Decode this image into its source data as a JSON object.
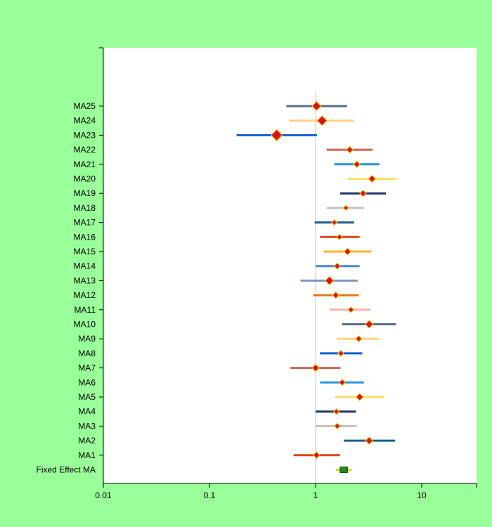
{
  "chart_data": {
    "type": "forest",
    "x_scale": "log",
    "xlim": [
      0.01,
      33
    ],
    "x_ticks": [
      "0.01",
      "0.1",
      "1",
      "10"
    ],
    "x_tick_values": [
      0.01,
      0.1,
      1,
      10
    ],
    "reference_line": 1,
    "grid": false,
    "colors": {
      "background": "#99ff99",
      "plot_area": "#ffffff",
      "reference_line": "#f4b6a6",
      "marker": "#dd1111",
      "marker_edge": "#ffcc00"
    },
    "studies": [
      {
        "label": "MA25",
        "estimate": 1.02,
        "lower": 0.53,
        "upper": 1.98,
        "color": "#5a6b86"
      },
      {
        "label": "MA24",
        "estimate": 1.15,
        "lower": 0.56,
        "upper": 2.3,
        "color": "#ffd27f"
      },
      {
        "label": "MA23",
        "estimate": 0.43,
        "lower": 0.18,
        "upper": 1.03,
        "color": "#0b5fd0"
      },
      {
        "label": "MA22",
        "estimate": 2.1,
        "lower": 1.27,
        "upper": 3.45,
        "color": "#cc6655"
      },
      {
        "label": "MA21",
        "estimate": 2.45,
        "lower": 1.5,
        "upper": 4.0,
        "color": "#2299dd"
      },
      {
        "label": "MA20",
        "estimate": 3.4,
        "lower": 2.0,
        "upper": 5.8,
        "color": "#ffe066"
      },
      {
        "label": "MA19",
        "estimate": 2.8,
        "lower": 1.7,
        "upper": 4.6,
        "color": "#223366"
      },
      {
        "label": "MA18",
        "estimate": 1.93,
        "lower": 1.28,
        "upper": 2.85,
        "color": "#c0c0c0"
      },
      {
        "label": "MA17",
        "estimate": 1.5,
        "lower": 0.98,
        "upper": 2.3,
        "color": "#1a5f87"
      },
      {
        "label": "MA16",
        "estimate": 1.68,
        "lower": 1.1,
        "upper": 2.6,
        "color": "#e04418"
      },
      {
        "label": "MA15",
        "estimate": 2.0,
        "lower": 1.2,
        "upper": 3.35,
        "color": "#ffb030"
      },
      {
        "label": "MA14",
        "estimate": 1.6,
        "lower": 1.0,
        "upper": 2.6,
        "color": "#4a86d6"
      },
      {
        "label": "MA13",
        "estimate": 1.35,
        "lower": 0.72,
        "upper": 2.5,
        "color": "#8099c0"
      },
      {
        "label": "MA12",
        "estimate": 1.55,
        "lower": 0.95,
        "upper": 2.55,
        "color": "#e07a10"
      },
      {
        "label": "MA11",
        "estimate": 2.15,
        "lower": 1.35,
        "upper": 3.3,
        "color": "#f4b6a6"
      },
      {
        "label": "MA10",
        "estimate": 3.2,
        "lower": 1.78,
        "upper": 5.7,
        "color": "#5a6b86"
      },
      {
        "label": "MA9",
        "estimate": 2.55,
        "lower": 1.58,
        "upper": 4.0,
        "color": "#ffd27f"
      },
      {
        "label": "MA8",
        "estimate": 1.73,
        "lower": 1.1,
        "upper": 2.75,
        "color": "#0b5fd0"
      },
      {
        "label": "MA7",
        "estimate": 1.0,
        "lower": 0.58,
        "upper": 1.72,
        "color": "#cc6655"
      },
      {
        "label": "MA6",
        "estimate": 1.78,
        "lower": 1.1,
        "upper": 2.85,
        "color": "#2299dd"
      },
      {
        "label": "MA5",
        "estimate": 2.6,
        "lower": 1.52,
        "upper": 4.45,
        "color": "#ffe066"
      },
      {
        "label": "MA4",
        "estimate": 1.57,
        "lower": 1.0,
        "upper": 2.4,
        "color": "#223366"
      },
      {
        "label": "MA3",
        "estimate": 1.6,
        "lower": 1.0,
        "upper": 2.45,
        "color": "#c0c0c0"
      },
      {
        "label": "MA2",
        "estimate": 3.2,
        "lower": 1.85,
        "upper": 5.6,
        "color": "#1a5f87"
      },
      {
        "label": "MA1",
        "estimate": 1.02,
        "lower": 0.62,
        "upper": 1.7,
        "color": "#e04418"
      }
    ],
    "summary": {
      "label": "Fixed Effect MA",
      "estimate": 1.85,
      "lower": 1.7,
      "upper": 2.0,
      "color": "#1f8a1f"
    }
  }
}
